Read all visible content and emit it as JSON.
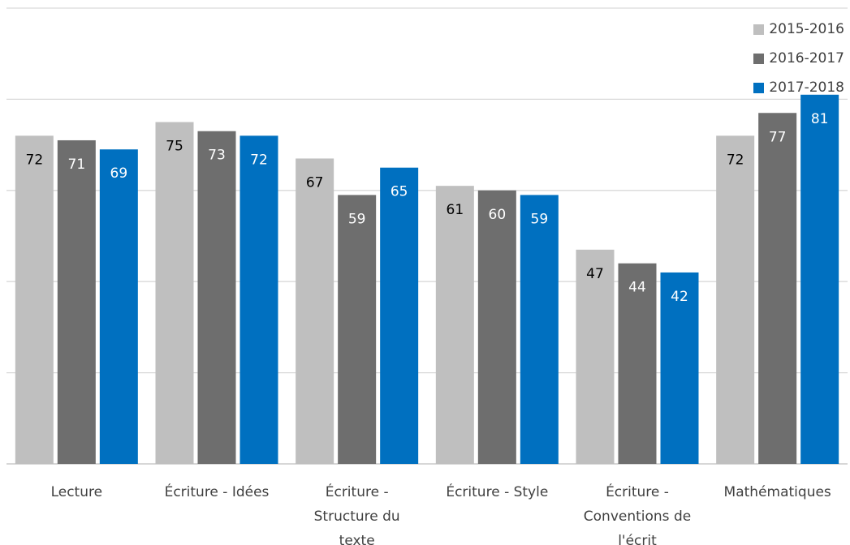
{
  "chart_data": {
    "type": "bar",
    "title": "",
    "xlabel": "",
    "ylabel": "",
    "ylim": [
      0,
      100
    ],
    "grid": true,
    "legend_position": "top-right",
    "categories": [
      [
        "Lecture"
      ],
      [
        "Écriture - Idées"
      ],
      [
        "Écriture -",
        "Structure du",
        "texte"
      ],
      [
        "Écriture - Style"
      ],
      [
        "Écriture -",
        "Conventions de",
        "l'écrit"
      ],
      [
        "Mathématiques"
      ]
    ],
    "series": [
      {
        "name": "2015-2016",
        "color": "#bfbfbf",
        "label_color": "#000000",
        "values": [
          72,
          75,
          67,
          61,
          47,
          72
        ]
      },
      {
        "name": "2016-2017",
        "color": "#6e6e6e",
        "label_color": "#ffffff",
        "values": [
          71,
          73,
          59,
          60,
          44,
          77
        ]
      },
      {
        "name": "2017-2018",
        "color": "#0070c0",
        "label_color": "#ffffff",
        "values": [
          69,
          72,
          65,
          59,
          42,
          81
        ]
      }
    ]
  }
}
